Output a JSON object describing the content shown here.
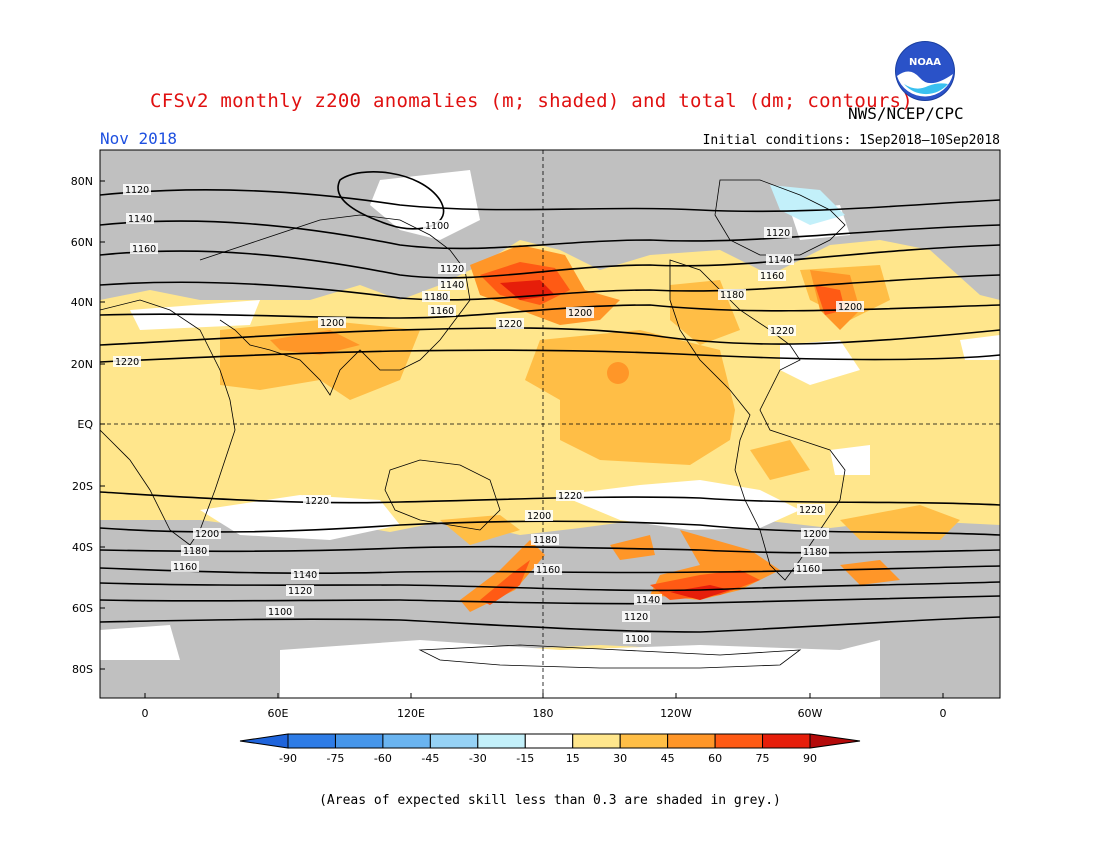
{
  "header": {
    "title": "CFSv2 monthly z200 anomalies (m; shaded) and total (dm; contours)",
    "agency": "NWS/NCEP/CPC",
    "period": "Nov 2018",
    "initial_conditions": "Initial conditions: 1Sep2018–10Sep2018"
  },
  "logo": {
    "icon": "noaa-logo-icon",
    "text": "NOAA"
  },
  "axes": {
    "lat_labels": [
      "80N",
      "60N",
      "40N",
      "20N",
      "EQ",
      "20S",
      "40S",
      "60S",
      "80S"
    ],
    "lon_labels": [
      "0",
      "60E",
      "120E",
      "180",
      "120W",
      "60W",
      "0"
    ]
  },
  "colorbar": {
    "labels": [
      "-90",
      "-75",
      "-60",
      "-45",
      "-30",
      "-15",
      "15",
      "30",
      "45",
      "60",
      "75",
      "90"
    ],
    "colors": [
      "#1e64dc",
      "#2e7ce6",
      "#4696ea",
      "#6ab4f0",
      "#96d2f5",
      "#c3f0fa",
      "#ffffff",
      "#ffe68c",
      "#ffbe46",
      "#ff9628",
      "#ff5a14",
      "#e61e0a",
      "#b40a0a"
    ]
  },
  "contour_labels": {
    "nh": [
      "1100",
      "1120",
      "1140",
      "1160",
      "1180",
      "1200",
      "1220"
    ],
    "sh": [
      "1220",
      "1200",
      "1180",
      "1160",
      "1140",
      "1120",
      "1100"
    ]
  },
  "footnote": "(Areas of expected skill less than 0.3 are shaded in grey.)",
  "colors": {
    "skill_grey": "#c0c0c0",
    "title_red": "#e01010",
    "date_blue": "#1e50e0"
  }
}
